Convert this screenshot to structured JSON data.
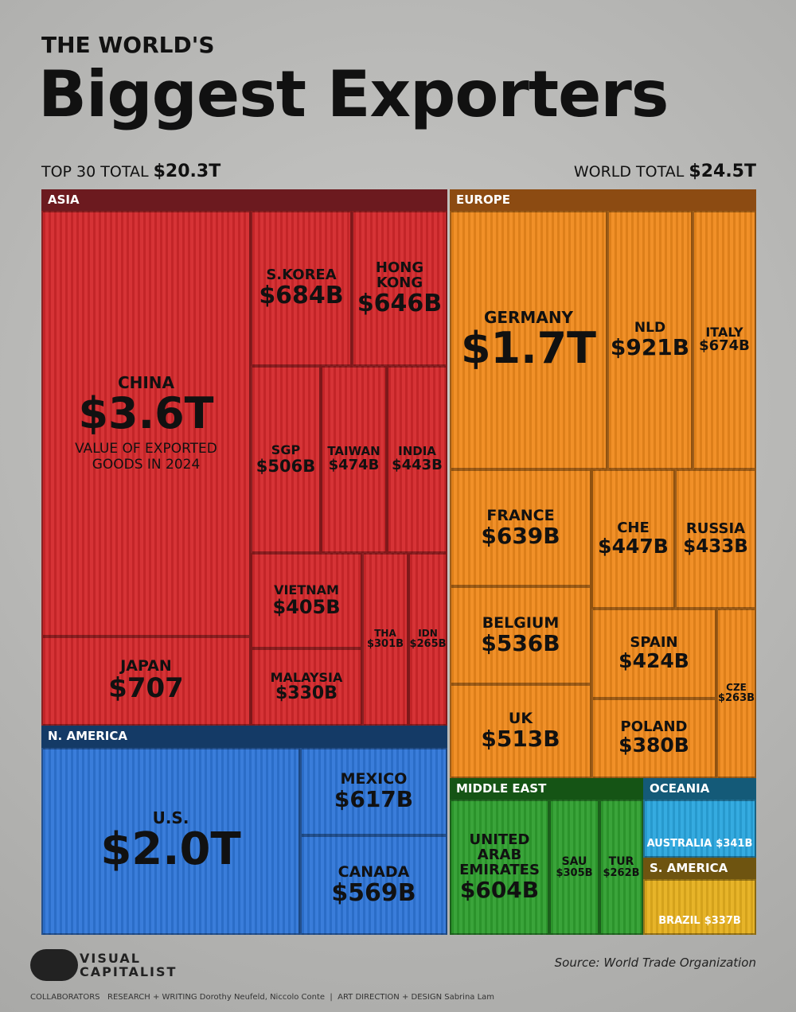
{
  "chart_data": {
    "type": "treemap",
    "title_top": "THE WORLD'S",
    "title": "Biggest Exporters",
    "top_total_label": "TOP 30 TOTAL",
    "top_total": "$20.3T",
    "world_total_label": "WORLD TOTAL",
    "world_total": "$24.5T",
    "note": "VALUE OF EXPORTED GOODS IN 2024",
    "series": [
      {
        "name": "ASIA",
        "color": "#d4282b",
        "header_color": "#6c1a1f",
        "categories": [
          "CHINA",
          "S.KOREA",
          "HONG KONG",
          "SGP",
          "TAIWAN",
          "INDIA",
          "VIETNAM",
          "MALAYSIA",
          "THA",
          "IDN",
          "JAPAN"
        ],
        "values": [
          3600,
          684,
          646,
          506,
          474,
          443,
          405,
          330,
          301,
          265,
          707
        ],
        "value_labels": [
          "$3.6T",
          "$684B",
          "$646B",
          "$506B",
          "$474B",
          "$443B",
          "$405B",
          "$330B",
          "$301B",
          "$265B",
          "$707"
        ]
      },
      {
        "name": "EUROPE",
        "color": "#f08a1c",
        "header_color": "#8c4b12",
        "categories": [
          "GERMANY",
          "NLD",
          "ITALY",
          "FRANCE",
          "CHE",
          "RUSSIA",
          "BELGIUM",
          "SPAIN",
          "CZE",
          "UK",
          "POLAND"
        ],
        "values": [
          1700,
          921,
          674,
          639,
          447,
          433,
          536,
          424,
          263,
          513,
          380
        ],
        "value_labels": [
          "$1.7T",
          "$921B",
          "$674B",
          "$639B",
          "$447B",
          "$433B",
          "$536B",
          "$424B",
          "$263B",
          "$513B",
          "$380B"
        ]
      },
      {
        "name": "N. AMERICA",
        "color": "#2f76d8",
        "header_color": "#143a66",
        "categories": [
          "U.S.",
          "MEXICO",
          "CANADA"
        ],
        "values": [
          2000,
          617,
          569
        ],
        "value_labels": [
          "$2.0T",
          "$617B",
          "$569B"
        ]
      },
      {
        "name": "MIDDLE EAST",
        "color": "#2f9f2f",
        "header_color": "#155415",
        "categories": [
          "UNITED ARAB EMIRATES",
          "SAU",
          "TUR"
        ],
        "values": [
          604,
          305,
          262
        ],
        "value_labels": [
          "$604B",
          "$305B",
          "$262B"
        ]
      },
      {
        "name": "OCEANIA",
        "color": "#2aa6de",
        "header_color": "#145a78",
        "categories": [
          "AUSTRALIA"
        ],
        "values": [
          341
        ],
        "value_labels": [
          "$341B"
        ]
      },
      {
        "name": "S. AMERICA",
        "color": "#e6b01e",
        "header_color": "#6e5410",
        "categories": [
          "BRAZIL"
        ],
        "values": [
          337
        ],
        "value_labels": [
          "$337B"
        ]
      }
    ],
    "source": "Source: World Trade Organization",
    "brand": "VISUAL CAPITALIST",
    "credits": "COLLABORATORS   RESEARCH + WRITING Dorothy Neufeld, Niccolo Conte  |  ART DIRECTION + DESIGN Sabrina Lam"
  }
}
